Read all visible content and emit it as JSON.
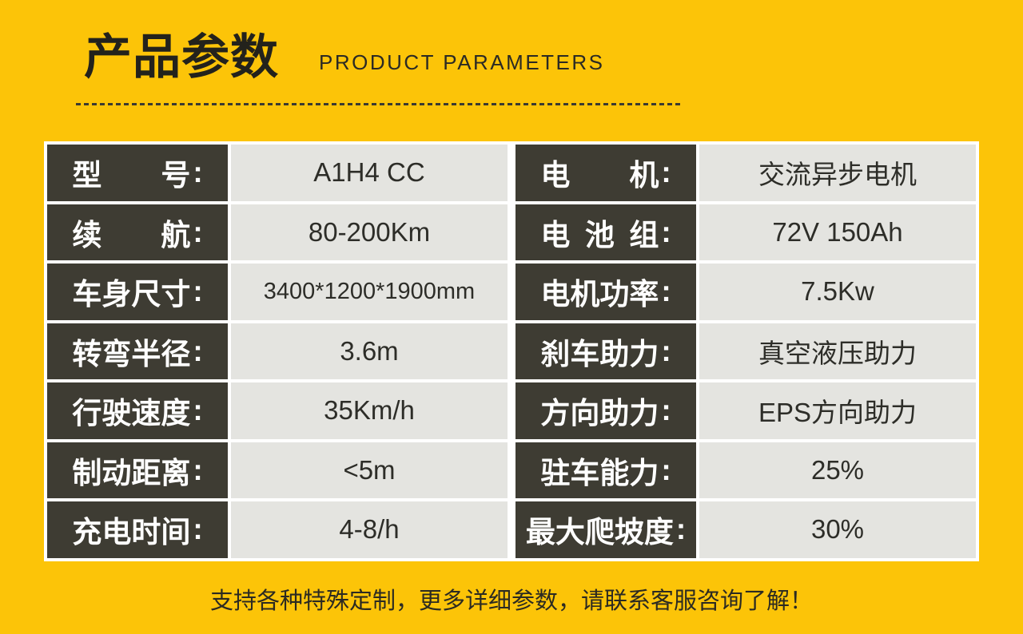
{
  "header": {
    "title_cn": "产品参数",
    "title_en": "PRODUCT PARAMETERS"
  },
  "table": {
    "rows": [
      {
        "left": {
          "label": "型号",
          "colon": ":",
          "value": "A1H4 CC"
        },
        "right": {
          "label": "电机",
          "colon": ":",
          "value": "交流异步电机"
        }
      },
      {
        "left": {
          "label": "续航",
          "colon": ":",
          "value": "80-200Km"
        },
        "right": {
          "label": "电池组",
          "colon": ":",
          "value": "72V 150Ah"
        }
      },
      {
        "left": {
          "label": "车身尺寸",
          "colon": ":",
          "value": "3400*1200*1900mm"
        },
        "right": {
          "label": "电机功率",
          "colon": ":",
          "value": "7.5Kw"
        }
      },
      {
        "left": {
          "label": "转弯半径",
          "colon": ":",
          "value": "3.6m"
        },
        "right": {
          "label": "刹车助力",
          "colon": ":",
          "value": "真空液压助力"
        }
      },
      {
        "left": {
          "label": "行驶速度",
          "colon": ":",
          "value": "35Km/h"
        },
        "right": {
          "label": "方向助力",
          "colon": ":",
          "value": "EPS方向助力"
        }
      },
      {
        "left": {
          "label": "制动距离",
          "colon": ":",
          "value": "<5m"
        },
        "right": {
          "label": "驻车能力",
          "colon": ":",
          "value": "25%"
        }
      },
      {
        "left": {
          "label": "充电时间",
          "colon": ":",
          "value": "4-8/h"
        },
        "right": {
          "label": "最大爬坡度",
          "colon": ":",
          "value": "30%"
        }
      }
    ]
  },
  "footer": {
    "note": "支持各种特殊定制，更多详细参数，请联系客服咨询了解！"
  },
  "colors": {
    "background": "#FCC408",
    "label_cell": "#3E3C33",
    "value_cell": "#E4E4E0",
    "border": "#FFFFFF",
    "text_dark": "#2B2A22"
  }
}
